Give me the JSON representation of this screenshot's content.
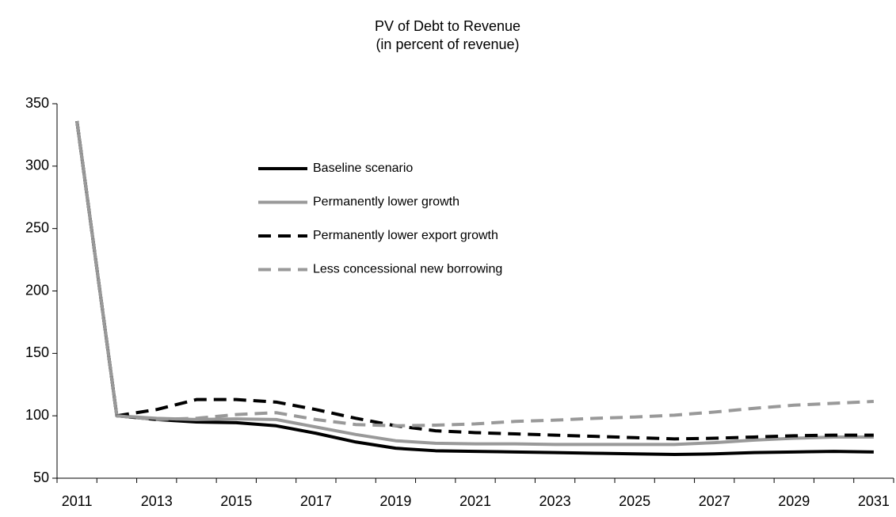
{
  "chart_data": {
    "type": "line",
    "title": "PV of Debt to Revenue",
    "subtitle": "(in percent of revenue)",
    "categories": [
      "2011",
      null,
      "2013",
      null,
      "2015",
      null,
      "2017",
      null,
      "2019",
      null,
      "2021",
      null,
      "2023",
      null,
      "2025",
      null,
      "2027",
      null,
      "2029",
      null,
      "2031"
    ],
    "series": [
      {
        "name": "Baseline scenario",
        "color": "#000000",
        "style": "solid",
        "values": [
          336,
          100,
          97,
          95,
          94.5,
          92,
          86,
          79,
          74,
          72,
          71.5,
          71,
          70.5,
          70,
          69.5,
          69,
          69.5,
          70.5,
          71,
          71.5,
          71
        ]
      },
      {
        "name": "Permanently lower growth",
        "color": "#999999",
        "style": "solid",
        "values": [
          336,
          100,
          98,
          97,
          97.5,
          97,
          91,
          85,
          80,
          78,
          77.5,
          77.5,
          77,
          77,
          77,
          77,
          78.5,
          80.5,
          82,
          83,
          83
        ]
      },
      {
        "name": "Permanently lower export growth",
        "color": "#000000",
        "style": "dashed",
        "values": [
          336,
          100,
          105,
          113,
          113,
          111,
          105,
          98,
          92,
          88,
          86.5,
          85.5,
          84.5,
          83.5,
          82.5,
          81.5,
          82,
          83,
          84,
          84.5,
          84.5
        ]
      },
      {
        "name": "Less concessional new borrowing",
        "color": "#999999",
        "style": "dashed",
        "values": [
          336,
          100,
          97,
          98,
          101,
          102.5,
          97,
          93,
          92,
          92.5,
          93.5,
          95.5,
          96.5,
          98,
          99,
          100.5,
          103,
          106,
          108.5,
          110,
          111.5
        ]
      }
    ],
    "ylim": [
      50,
      350
    ],
    "yticks": [
      50,
      100,
      150,
      200,
      250,
      300,
      350
    ],
    "legend": "upper-left"
  }
}
